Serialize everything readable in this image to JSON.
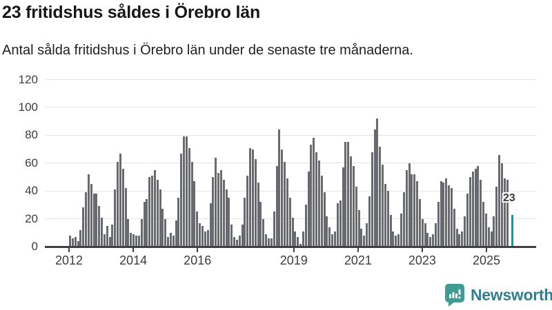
{
  "header": {
    "title": "23 fritidshus såldes i Örebro län",
    "subtitle": "Antal sålda fritidshus i Örebro län under de senaste tre månaderna."
  },
  "chart_data": {
    "type": "bar",
    "title": "23 fritidshus såldes i Örebro län",
    "subtitle": "Antal sålda fritidshus i Örebro län under de senaste tre månaderna.",
    "xlabel": "",
    "ylabel": "",
    "ylim": [
      0,
      120
    ],
    "yticks": [
      0,
      20,
      40,
      60,
      80,
      100,
      120
    ],
    "grid": true,
    "legend_position": "none",
    "frequency": "monthly",
    "start_period": "2012-01",
    "xticks": [
      {
        "label": "2012",
        "year": 2012
      },
      {
        "label": "2014",
        "year": 2014
      },
      {
        "label": "2016",
        "year": 2016
      },
      {
        "label": "2019",
        "year": 2019
      },
      {
        "label": "2021",
        "year": 2021
      },
      {
        "label": "2023",
        "year": 2023
      },
      {
        "label": "2025",
        "year": 2025
      }
    ],
    "values": [
      8,
      6,
      7,
      4,
      12,
      28,
      39,
      52,
      45,
      38,
      38,
      29,
      21,
      9,
      15,
      7,
      16,
      41,
      61,
      67,
      56,
      42,
      20,
      10,
      9,
      8,
      8,
      20,
      32,
      34,
      50,
      51,
      55,
      48,
      41,
      27,
      20,
      7,
      10,
      8,
      19,
      35,
      67,
      79,
      79,
      71,
      61,
      47,
      25,
      17,
      15,
      11,
      12,
      31,
      50,
      64,
      53,
      55,
      48,
      41,
      35,
      16,
      7,
      5,
      8,
      16,
      35,
      51,
      71,
      70,
      63,
      46,
      32,
      20,
      9,
      6,
      6,
      25,
      58,
      84,
      70,
      61,
      49,
      35,
      21,
      11,
      7,
      2,
      11,
      30,
      54,
      73,
      78,
      68,
      62,
      51,
      39,
      22,
      14,
      9,
      11,
      31,
      33,
      57,
      75,
      75,
      65,
      58,
      43,
      26,
      13,
      8,
      17,
      36,
      68,
      84,
      92,
      72,
      59,
      45,
      40,
      23,
      11,
      8,
      9,
      24,
      39,
      55,
      60,
      52,
      52,
      47,
      34,
      20,
      17,
      10,
      7,
      9,
      17,
      32,
      47,
      46,
      49,
      44,
      42,
      27,
      13,
      9,
      11,
      22,
      38,
      50,
      54,
      56,
      58,
      48,
      32,
      24,
      14,
      11,
      22,
      43,
      66,
      60,
      49,
      48,
      null,
      23
    ],
    "bar_color": "#686a70",
    "highlight": {
      "index": 167,
      "value": 23,
      "label": "23",
      "color": "#00a0a5"
    }
  },
  "footer": {
    "brand": "Newsworthy",
    "logo_icon": "newsworthy-speech-bubble-bar-chart-icon"
  },
  "colors": {
    "bar_gray": "#686a70",
    "accent_teal": "#00a0a5",
    "gridline": "#e4e4e4",
    "axis": "#404040",
    "tick_text": "#3d3d3d",
    "logo_teal": "#3f9c95",
    "wordmark_teal": "#337e8e"
  }
}
